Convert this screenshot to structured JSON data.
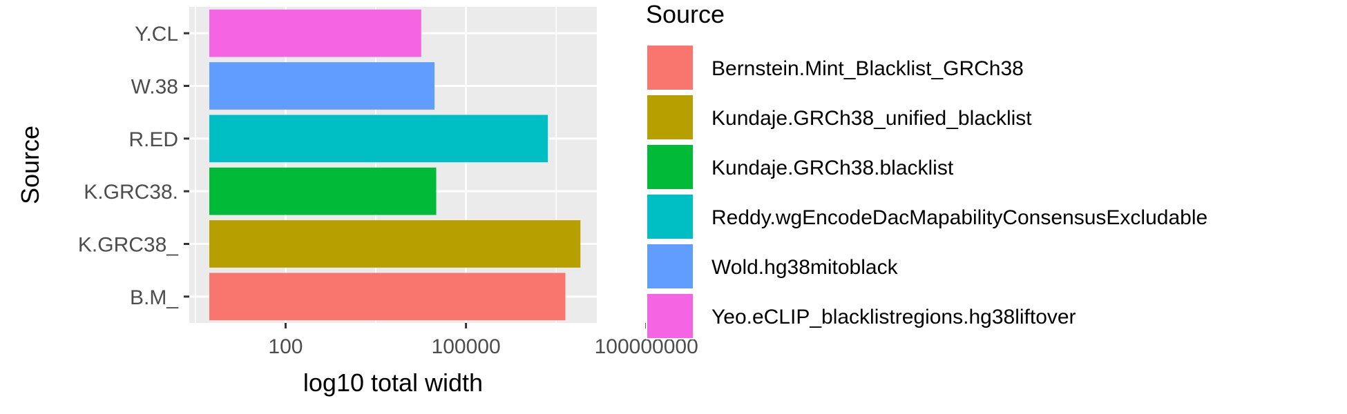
{
  "chart_data": {
    "type": "bar",
    "orientation": "horizontal",
    "categories": [
      "B.M_",
      "K.GRC38_",
      "K.GRC38.",
      "R.ED",
      "W.38",
      "Y.CL"
    ],
    "values": [
      4500000,
      8000000,
      32000,
      2300000,
      30000,
      18000
    ],
    "colors": [
      "#F8766D",
      "#B79F00",
      "#00BA38",
      "#00BFC4",
      "#619CFF",
      "#F564E3"
    ],
    "xlabel": "log10 total width",
    "ylabel": "Source",
    "x_scale": "log10",
    "xlim": [
      2.5,
      15000000
    ],
    "x_ticks": [
      {
        "value": 100,
        "label": "100"
      },
      {
        "value": 100000,
        "label": "100000"
      },
      {
        "value": 100000000,
        "label": "100000000"
      }
    ],
    "grid": true,
    "legend": {
      "title": "Source",
      "position": "right",
      "entries": [
        {
          "label": "Bernstein.Mint_Blacklist_GRCh38",
          "color": "#F8766D"
        },
        {
          "label": "Kundaje.GRCh38_unified_blacklist",
          "color": "#B79F00"
        },
        {
          "label": "Kundaje.GRCh38.blacklist",
          "color": "#00BA38"
        },
        {
          "label": "Reddy.wgEncodeDacMapabilityConsensusExcludable",
          "color": "#00BFC4"
        },
        {
          "label": "Wold.hg38mitoblack",
          "color": "#619CFF"
        },
        {
          "label": "Yeo.eCLIP_blacklistregions.hg38liftover",
          "color": "#F564E3"
        }
      ]
    }
  }
}
